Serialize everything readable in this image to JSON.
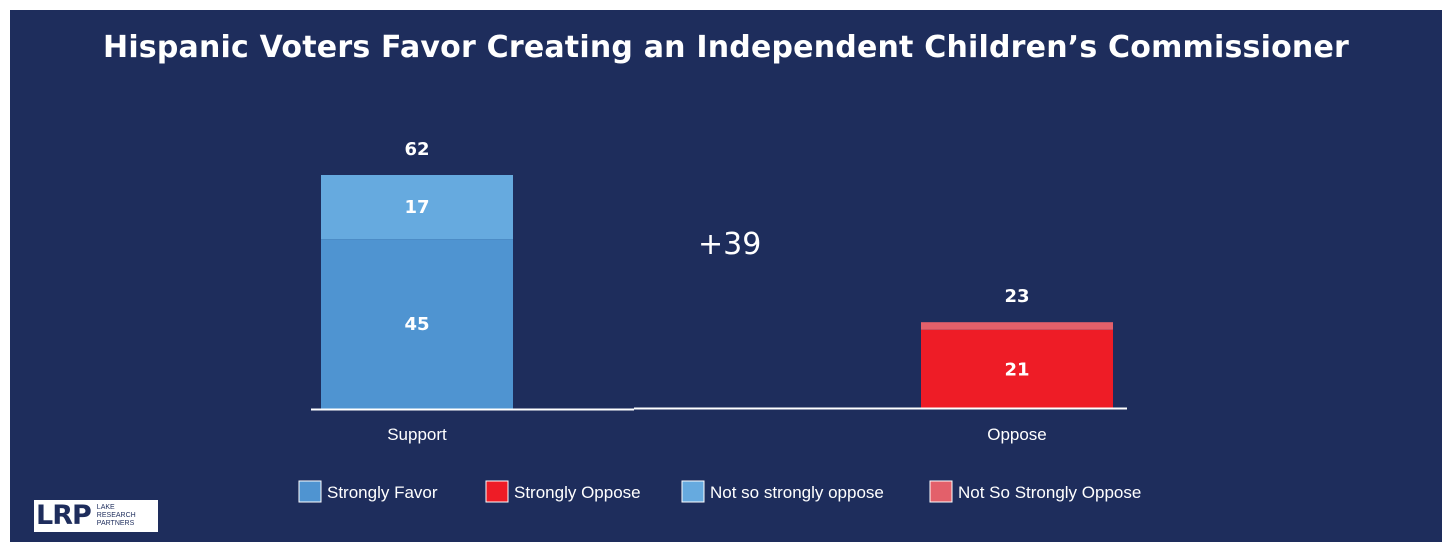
{
  "title": "Hispanic Voters Favor Creating an Independent Children’s Commissioner",
  "margin_label": "+39",
  "logo": {
    "mark": "LRP",
    "lines": [
      "LAKE",
      "RESEARCH",
      "PARTNERS"
    ]
  },
  "colors": {
    "background": "#1e2d5c",
    "strongly_favor": "#4f94d1",
    "not_so_strongly_favor": "#66aadf",
    "strongly_oppose": "#ee1c26",
    "not_so_strongly_oppose": "#e3606a",
    "axis": "#ffffff"
  },
  "chart_data": {
    "type": "bar",
    "stacked": true,
    "categories": [
      "Support",
      "Oppose"
    ],
    "totals": [
      62,
      23
    ],
    "segments": [
      {
        "category": "Support",
        "name": "Strongly Favor",
        "value": 45,
        "label": "45",
        "color": "#4f94d1"
      },
      {
        "category": "Support",
        "name": "Not so strongly oppose",
        "value": 17,
        "label": "17",
        "color": "#66aadf"
      },
      {
        "category": "Oppose",
        "name": "Strongly Oppose",
        "value": 21,
        "label": "21",
        "color": "#ee1c26"
      },
      {
        "category": "Oppose",
        "name": "Not So Strongly Oppose",
        "value": 2,
        "label": "",
        "color": "#e3606a"
      }
    ],
    "legend": [
      {
        "name": "Strongly Favor",
        "color": "#4f94d1"
      },
      {
        "name": "Strongly Oppose",
        "color": "#ee1c26"
      },
      {
        "name": "Not so strongly oppose",
        "color": "#66aadf"
      },
      {
        "name": "Not So Strongly Oppose",
        "color": "#e3606a"
      }
    ],
    "legend_position": "bottom",
    "ylim": [
      0,
      62
    ],
    "grid": false
  }
}
